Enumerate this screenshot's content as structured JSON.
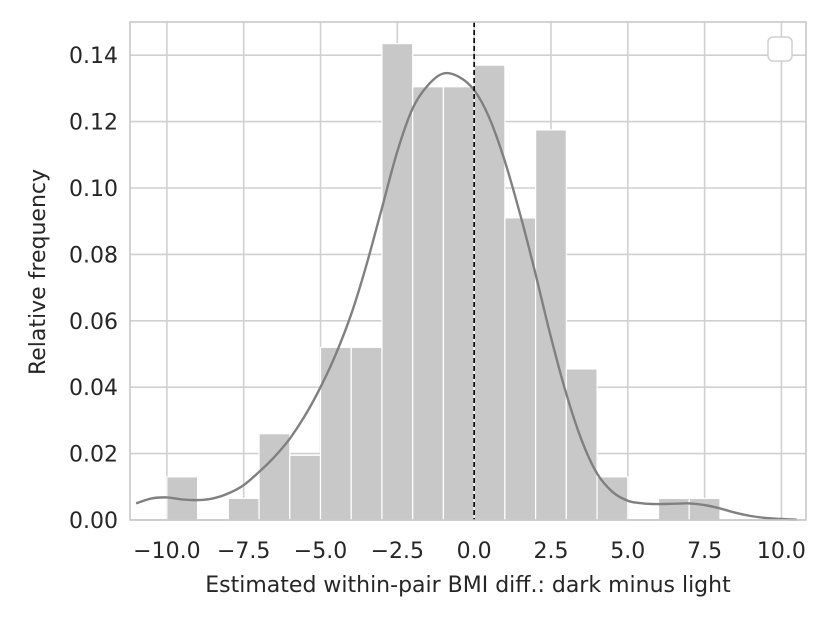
{
  "chart_data": {
    "type": "bar",
    "title": "",
    "xlabel": "Estimated within-pair BMI diff.: dark minus light",
    "ylabel": "Relative frequency",
    "xlim": [
      -11.2,
      10.8
    ],
    "ylim": [
      0.0,
      0.15
    ],
    "grid": true,
    "legend": "top-right (empty)",
    "colors": {
      "bars": "#c8c8c8",
      "kde": "#808080",
      "grid": "#d0d0d0",
      "axes": "#c8c8c8",
      "reference_line": "#000000"
    },
    "x_ticks": [
      -10.0,
      -7.5,
      -5.0,
      -2.5,
      0.0,
      2.5,
      5.0,
      7.5,
      10.0
    ],
    "x_tick_labels": [
      "−10.0",
      "−7.5",
      "−5.0",
      "−2.5",
      "0.0",
      "2.5",
      "5.0",
      "7.5",
      "10.0"
    ],
    "y_ticks": [
      0.0,
      0.02,
      0.04,
      0.06,
      0.08,
      0.1,
      0.12,
      0.14
    ],
    "y_tick_labels": [
      "0.00",
      "0.02",
      "0.04",
      "0.06",
      "0.08",
      "0.10",
      "0.12",
      "0.14"
    ],
    "histogram": {
      "bin_edges": [
        -11.0,
        -10.0,
        -9.0,
        -8.0,
        -7.0,
        -6.0,
        -5.0,
        -4.0,
        -3.0,
        -2.0,
        -1.0,
        0.0,
        1.0,
        2.0,
        3.0,
        4.0,
        5.0,
        6.0,
        7.0,
        8.0
      ],
      "values": [
        0.0,
        0.013,
        0.0,
        0.0065,
        0.026,
        0.0195,
        0.052,
        0.052,
        0.1435,
        0.1305,
        0.1305,
        0.137,
        0.091,
        0.1175,
        0.0455,
        0.013,
        0.0,
        0.0065,
        0.0065
      ]
    },
    "kde": {
      "x": [
        -11.0,
        -10.5,
        -10.0,
        -9.5,
        -9.0,
        -8.5,
        -8.0,
        -7.5,
        -7.0,
        -6.5,
        -6.0,
        -5.5,
        -5.0,
        -4.5,
        -4.0,
        -3.5,
        -3.0,
        -2.5,
        -2.0,
        -1.5,
        -1.0,
        -0.5,
        0.0,
        0.5,
        1.0,
        1.5,
        2.0,
        2.5,
        3.0,
        3.5,
        4.0,
        4.5,
        5.0,
        5.5,
        6.0,
        6.5,
        7.0,
        7.5,
        8.0,
        8.5,
        9.0,
        9.5,
        10.0,
        10.5
      ],
      "y": [
        0.005,
        0.0065,
        0.0068,
        0.0062,
        0.006,
        0.0065,
        0.008,
        0.0105,
        0.0145,
        0.019,
        0.0245,
        0.0315,
        0.04,
        0.05,
        0.062,
        0.077,
        0.094,
        0.111,
        0.124,
        0.131,
        0.1345,
        0.1335,
        0.1295,
        0.121,
        0.108,
        0.092,
        0.074,
        0.055,
        0.038,
        0.024,
        0.014,
        0.0085,
        0.0058,
        0.005,
        0.0048,
        0.0049,
        0.005,
        0.0045,
        0.0035,
        0.0022,
        0.0012,
        0.0006,
        0.0003,
        0.0001
      ]
    },
    "reference_line_x": 0.0
  }
}
